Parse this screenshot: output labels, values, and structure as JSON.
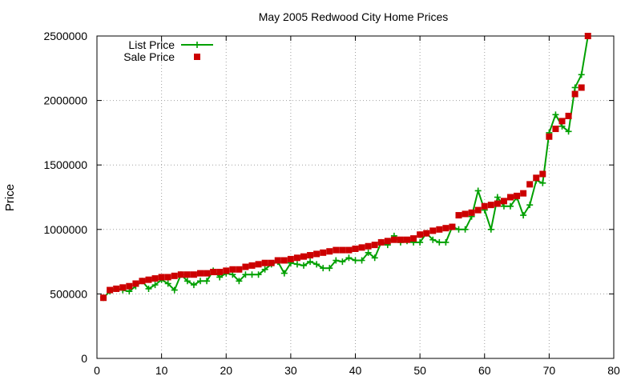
{
  "chart_data": {
    "type": "line",
    "title": "May 2005 Redwood City Home Prices",
    "xlabel": "",
    "ylabel": "Price",
    "xlim": [
      0,
      80
    ],
    "ylim": [
      0,
      2500000
    ],
    "xticks": [
      "0",
      "10",
      "20",
      "30",
      "40",
      "50",
      "60",
      "70",
      "80"
    ],
    "yticks": [
      "0",
      "500000",
      "1000000",
      "1500000",
      "2000000",
      "2500000"
    ],
    "grid": true,
    "legend_position": "top-left",
    "series": [
      {
        "name": "List Price",
        "color": "#00a000",
        "marker": "plus",
        "x": [
          1,
          2,
          3,
          4,
          5,
          6,
          7,
          8,
          9,
          10,
          11,
          12,
          13,
          14,
          15,
          16,
          17,
          18,
          19,
          20,
          21,
          22,
          23,
          24,
          25,
          26,
          27,
          28,
          29,
          30,
          31,
          32,
          33,
          34,
          35,
          36,
          37,
          38,
          39,
          40,
          41,
          42,
          43,
          44,
          45,
          46,
          47,
          48,
          49,
          50,
          51,
          52,
          53,
          54,
          55,
          56,
          57,
          58,
          59,
          60,
          61,
          62,
          63,
          64,
          65,
          66,
          67,
          68,
          69,
          70,
          71,
          72,
          73,
          74,
          75,
          76
        ],
        "y": [
          470000,
          520000,
          540000,
          530000,
          520000,
          560000,
          600000,
          540000,
          570000,
          610000,
          580000,
          530000,
          650000,
          600000,
          570000,
          600000,
          600000,
          680000,
          630000,
          660000,
          650000,
          600000,
          650000,
          650000,
          650000,
          690000,
          730000,
          750000,
          660000,
          740000,
          730000,
          720000,
          750000,
          730000,
          700000,
          700000,
          760000,
          750000,
          780000,
          760000,
          760000,
          820000,
          780000,
          900000,
          880000,
          950000,
          900000,
          910000,
          900000,
          900000,
          970000,
          920000,
          900000,
          900000,
          1020000,
          1000000,
          1000000,
          1100000,
          1300000,
          1150000,
          1000000,
          1250000,
          1180000,
          1180000,
          1250000,
          1110000,
          1190000,
          1380000,
          1360000,
          1750000,
          1890000,
          1800000,
          1760000,
          2100000,
          2200000,
          2500000
        ]
      },
      {
        "name": "Sale Price",
        "color": "#cc0000",
        "marker": "square",
        "x": [
          1,
          2,
          3,
          4,
          5,
          6,
          7,
          8,
          9,
          10,
          11,
          12,
          13,
          14,
          15,
          16,
          17,
          18,
          19,
          20,
          21,
          22,
          23,
          24,
          25,
          26,
          27,
          28,
          29,
          30,
          31,
          32,
          33,
          34,
          35,
          36,
          37,
          38,
          39,
          40,
          41,
          42,
          43,
          44,
          45,
          46,
          47,
          48,
          49,
          50,
          51,
          52,
          53,
          54,
          55,
          56,
          57,
          58,
          59,
          60,
          61,
          62,
          63,
          64,
          65,
          66,
          67,
          68,
          69,
          70,
          71,
          72,
          73,
          74,
          75,
          76
        ],
        "y": [
          470000,
          530000,
          540000,
          550000,
          560000,
          580000,
          600000,
          610000,
          620000,
          630000,
          630000,
          640000,
          650000,
          650000,
          650000,
          660000,
          660000,
          670000,
          670000,
          680000,
          690000,
          690000,
          710000,
          720000,
          730000,
          740000,
          740000,
          760000,
          760000,
          770000,
          780000,
          790000,
          800000,
          810000,
          820000,
          830000,
          840000,
          840000,
          840000,
          850000,
          860000,
          870000,
          880000,
          900000,
          910000,
          920000,
          920000,
          920000,
          930000,
          960000,
          970000,
          990000,
          1000000,
          1010000,
          1020000,
          1110000,
          1120000,
          1130000,
          1150000,
          1180000,
          1190000,
          1200000,
          1220000,
          1250000,
          1260000,
          1280000,
          1350000,
          1400000,
          1430000,
          1720000,
          1780000,
          1840000,
          1880000,
          2050000,
          2100000,
          2500000
        ]
      }
    ]
  }
}
